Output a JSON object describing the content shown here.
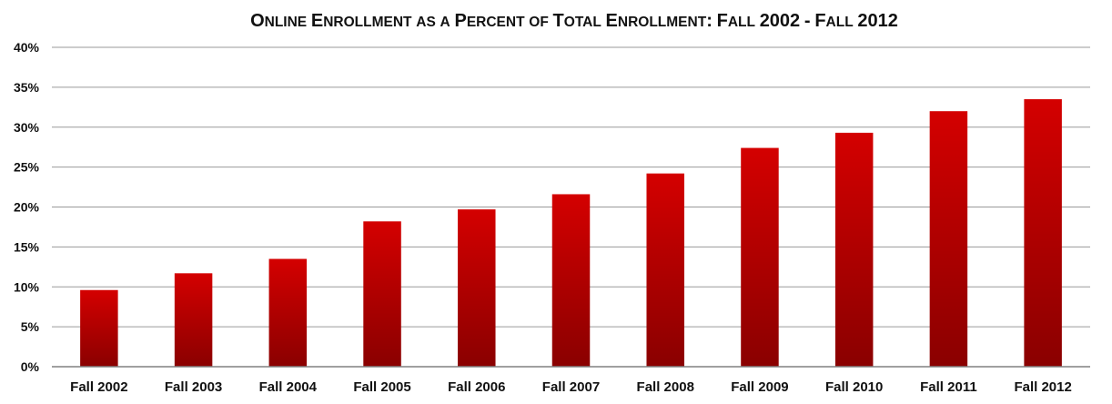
{
  "chart_data": {
    "type": "bar",
    "title": "Online Enrollment as a Percent of Total Enrollment: Fall 2002 - Fall 2012",
    "xlabel": "",
    "ylabel": "",
    "categories": [
      "Fall 2002",
      "Fall 2003",
      "Fall 2004",
      "Fall 2005",
      "Fall 2006",
      "Fall 2007",
      "Fall 2008",
      "Fall 2009",
      "Fall 2010",
      "Fall 2011",
      "Fall 2012"
    ],
    "values": [
      9.6,
      11.7,
      13.5,
      18.2,
      19.7,
      21.6,
      24.2,
      27.4,
      29.3,
      32.0,
      33.5
    ],
    "ylim": [
      0,
      40
    ],
    "yticks": [
      0,
      5,
      10,
      15,
      20,
      25,
      30,
      35,
      40
    ],
    "ytick_labels": [
      "0%",
      "5%",
      "10%",
      "15%",
      "20%",
      "25%",
      "30%",
      "35%",
      "40%"
    ],
    "grid": true,
    "legend": "none",
    "colors": {
      "bar_top": "#d40000",
      "bar_bottom": "#8a0000",
      "grid": "#9a9a9a",
      "axis": "#808080"
    }
  }
}
